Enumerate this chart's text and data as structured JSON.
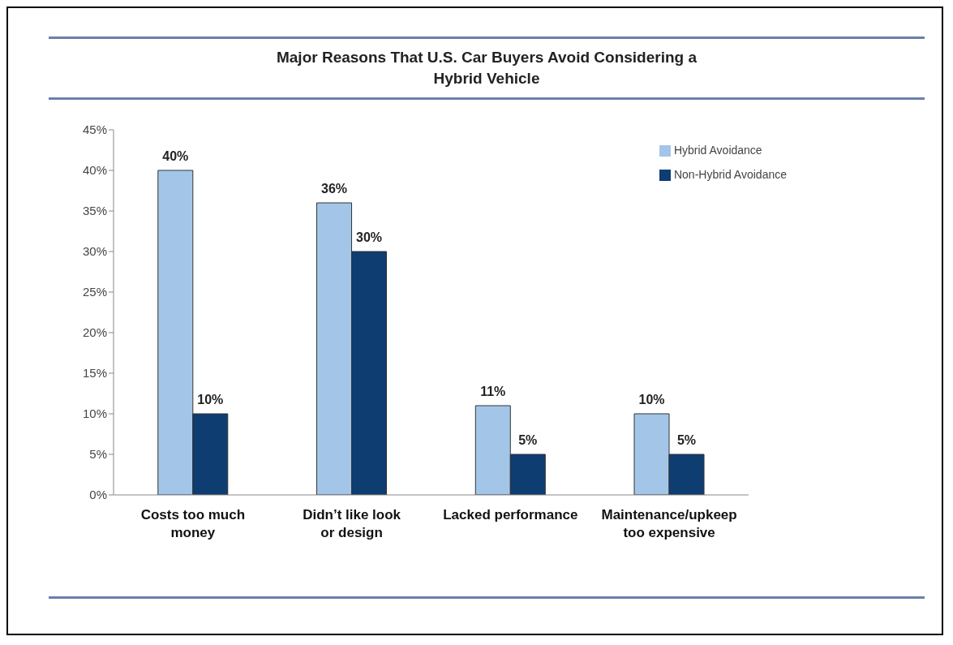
{
  "chart_data": {
    "type": "bar",
    "title": "Major Reasons That U.S. Car Buyers Avoid Considering a Hybrid Vehicle",
    "categories": [
      "Costs too much money",
      "Didn’t like look or design",
      "Lacked performance",
      "Maintenance/upkeep too expensive"
    ],
    "series": [
      {
        "name": "Hybrid Avoidance",
        "color": "#a3c6e8",
        "values": [
          40,
          36,
          11,
          10
        ],
        "value_labels": [
          "40%",
          "36%",
          "11%",
          "10%"
        ]
      },
      {
        "name": "Non-Hybrid Avoidance",
        "color": "#0e3d72",
        "values": [
          10,
          30,
          5,
          5
        ],
        "value_labels": [
          "10%",
          "30%",
          "5%",
          "5%"
        ]
      }
    ],
    "ylim": [
      0,
      45
    ],
    "yticks": [
      {
        "value": 0,
        "label": "0%"
      },
      {
        "value": 5,
        "label": "5%"
      },
      {
        "value": 10,
        "label": "10%"
      },
      {
        "value": 15,
        "label": "15%"
      },
      {
        "value": 20,
        "label": "20%"
      },
      {
        "value": 25,
        "label": "25%"
      },
      {
        "value": 30,
        "label": "30%"
      },
      {
        "value": 35,
        "label": "35%"
      },
      {
        "value": 40,
        "label": "40%"
      },
      {
        "value": 45,
        "label": "45%"
      }
    ],
    "legend": "top right"
  }
}
